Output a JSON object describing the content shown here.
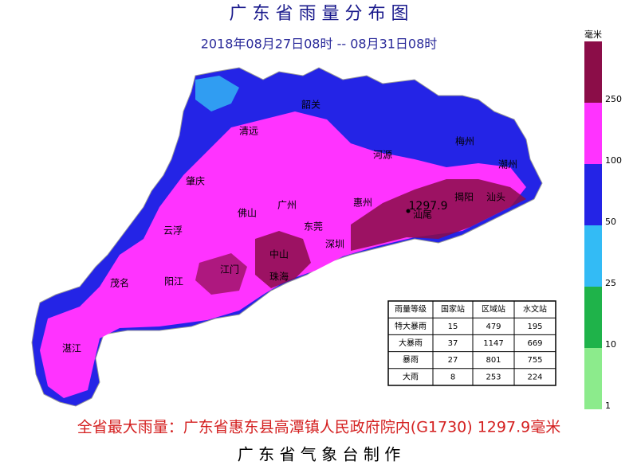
{
  "header": {
    "title": "广 东 省 雨 量 分 布 图",
    "subtitle": "2018年08月27日08时 -- 08月31日08时"
  },
  "legend": {
    "unit": "毫米",
    "colors": [
      "#8b0d48",
      "#ff33ff",
      "#2424e6",
      "#33bbf5",
      "#1fb34a",
      "#8ceb8c"
    ],
    "ticks": [
      "250",
      "100",
      "50",
      "25",
      "10",
      "1"
    ]
  },
  "map": {
    "labels": [
      "韶关",
      "清远",
      "河源",
      "梅州",
      "潮州",
      "肇庆",
      "惠州",
      "揭阳",
      "汕头",
      "广州",
      "佛山",
      "云浮",
      "东莞",
      "深圳",
      "汕尾",
      "中山",
      "江门",
      "珠海",
      "茂名",
      "阳江",
      "湛江"
    ],
    "max_point": "1297.9"
  },
  "table": {
    "header": [
      "雨量等级",
      "国家站",
      "区域站",
      "水文站"
    ],
    "rows": [
      [
        "特大暴雨",
        "15",
        "479",
        "195"
      ],
      [
        "大暴雨",
        "37",
        "1147",
        "669"
      ],
      [
        "暴雨",
        "27",
        "801",
        "755"
      ],
      [
        "大雨",
        "8",
        "253",
        "224"
      ]
    ]
  },
  "footer": {
    "max_rain": "全省最大雨量：广东省惠东县高潭镇人民政府院内(G1730) 1297.9毫米",
    "producer": "广 东 省 气 象 台 制 作"
  }
}
